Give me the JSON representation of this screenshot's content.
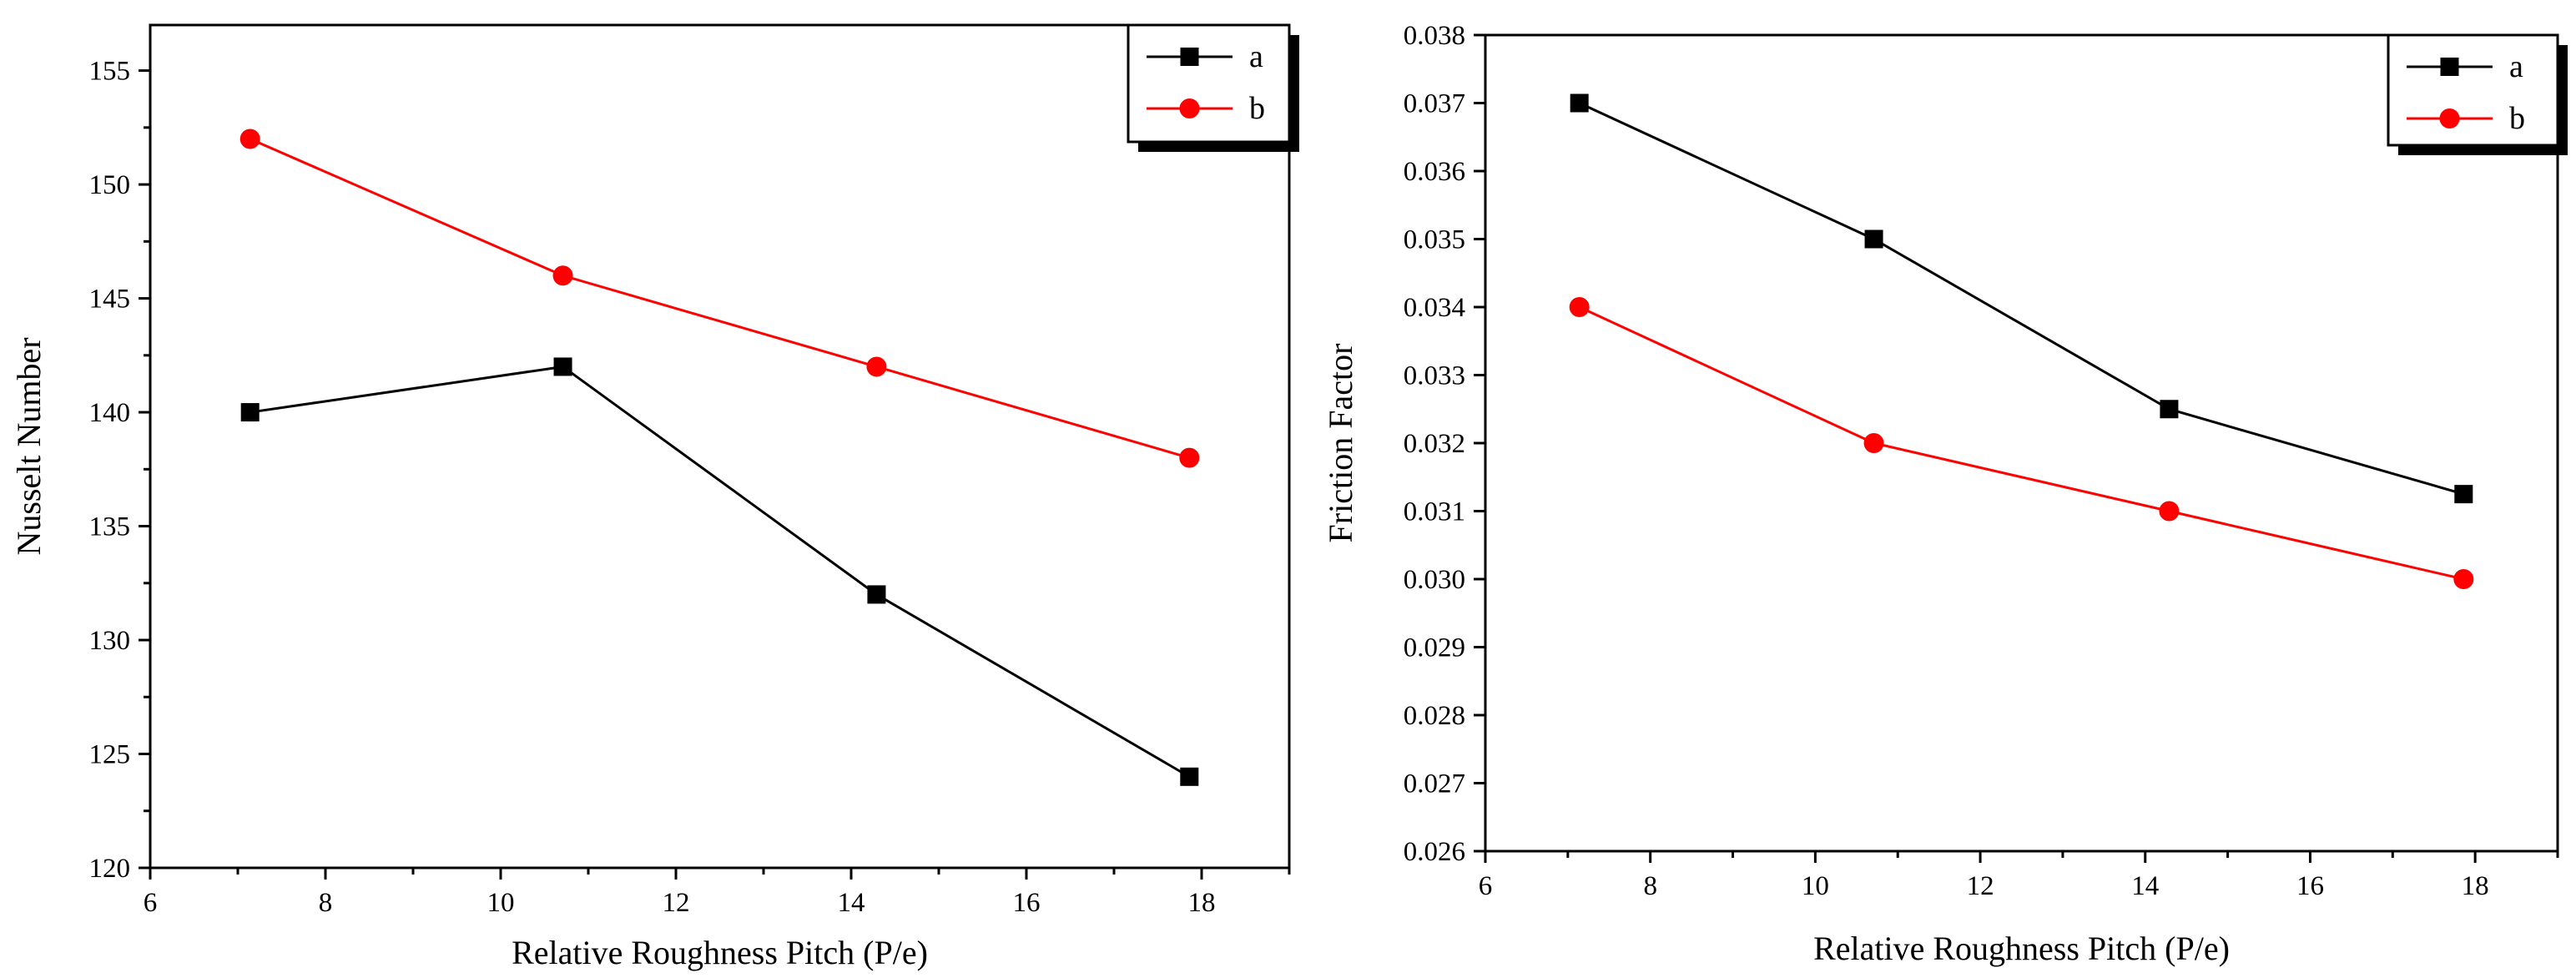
{
  "chart_data": [
    {
      "type": "line",
      "title": "",
      "xlabel": "Relative Roughness Pitch (P/e)",
      "ylabel": "Nusselt Number",
      "xlim": [
        6,
        19
      ],
      "ylim": [
        120,
        157
      ],
      "xticks": [
        6,
        8,
        10,
        12,
        14,
        16,
        18
      ],
      "yticks": [
        120,
        125,
        130,
        135,
        140,
        145,
        150,
        155
      ],
      "xtick_labels": [
        "6",
        "8",
        "10",
        "12",
        "14",
        "16",
        "18"
      ],
      "ytick_labels": [
        "120",
        "125",
        "130",
        "135",
        "140",
        "145",
        "150",
        "155"
      ],
      "legend_position": "top-right",
      "grid": false,
      "x": [
        7.14,
        10.71,
        14.29,
        17.86
      ],
      "series": [
        {
          "name": "a",
          "color": "#000000",
          "marker": "square",
          "values": [
            140,
            142,
            132,
            124
          ]
        },
        {
          "name": "b",
          "color": "#ff0000",
          "marker": "circle",
          "values": [
            152,
            146,
            142,
            138
          ]
        }
      ]
    },
    {
      "type": "line",
      "title": "",
      "xlabel": "Relative Roughness Pitch (P/e)",
      "ylabel": "Friction Factor",
      "xlim": [
        6,
        19
      ],
      "ylim": [
        0.026,
        0.038
      ],
      "xticks": [
        6,
        8,
        10,
        12,
        14,
        16,
        18
      ],
      "yticks": [
        0.026,
        0.027,
        0.028,
        0.029,
        0.03,
        0.031,
        0.032,
        0.033,
        0.034,
        0.035,
        0.036,
        0.037,
        0.038
      ],
      "xtick_labels": [
        "6",
        "8",
        "10",
        "12",
        "14",
        "16",
        "18"
      ],
      "ytick_labels": [
        "0.026",
        "0.027",
        "0.028",
        "0.029",
        "0.030",
        "0.031",
        "0.032",
        "0.033",
        "0.034",
        "0.035",
        "0.036",
        "0.037",
        "0.038"
      ],
      "legend_position": "top-right",
      "grid": false,
      "x": [
        7.14,
        10.71,
        14.29,
        17.86
      ],
      "series": [
        {
          "name": "a",
          "color": "#000000",
          "marker": "square",
          "values": [
            0.037,
            0.035,
            0.0325,
            0.03125
          ]
        },
        {
          "name": "b",
          "color": "#ff0000",
          "marker": "circle",
          "values": [
            0.034,
            0.032,
            0.031,
            0.03
          ]
        }
      ]
    }
  ]
}
